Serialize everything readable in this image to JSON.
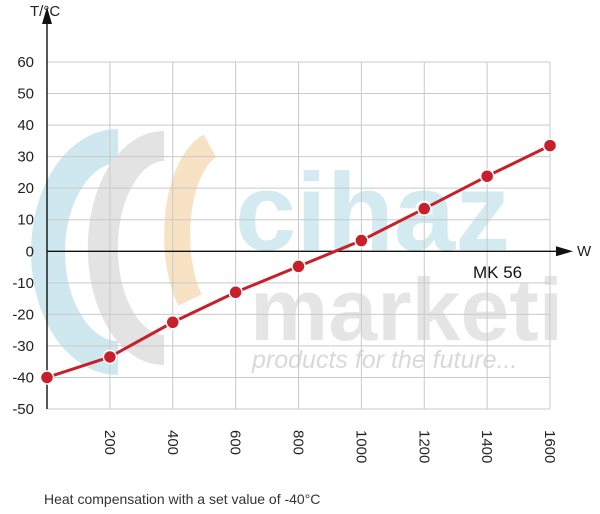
{
  "chart_data": {
    "type": "line",
    "title": "",
    "xlabel": "W",
    "ylabel": "T/°C",
    "xlim": [
      0,
      1600
    ],
    "ylim": [
      -50,
      60
    ],
    "xticks": [
      200,
      400,
      600,
      800,
      1000,
      1200,
      1400,
      1600
    ],
    "yticks": [
      60,
      50,
      40,
      30,
      20,
      10,
      0,
      -10,
      -20,
      -30,
      -40,
      -50
    ],
    "grid": true,
    "series": [
      {
        "name": "MK 56",
        "color": "#c8202a",
        "points": [
          {
            "x": 0,
            "y": -40
          },
          {
            "x": 200,
            "y": -33.5
          },
          {
            "x": 400,
            "y": -22.5
          },
          {
            "x": 600,
            "y": -13
          },
          {
            "x": 800,
            "y": -4.8
          },
          {
            "x": 1000,
            "y": 3.4
          },
          {
            "x": 1200,
            "y": 13.5
          },
          {
            "x": 1400,
            "y": 23.8
          },
          {
            "x": 1600,
            "y": 33.5
          }
        ]
      }
    ],
    "caption": "Heat compensation with a set value of -40°C"
  },
  "watermark": {
    "line1": "cihaz",
    "line2": "marketi",
    "slogan": "products for the future..."
  },
  "colors": {
    "grid": "#c9c9c9",
    "axis": "#111111",
    "watermark_cyan": "#cfe8ef",
    "watermark_gray": "#e3e3e3",
    "watermark_orange": "#f8e2c4"
  }
}
